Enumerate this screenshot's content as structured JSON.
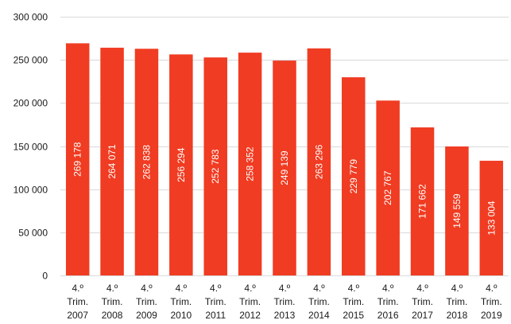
{
  "chart_data": {
    "type": "bar",
    "title": "",
    "xlabel": "",
    "ylabel": "",
    "categories": [
      [
        "4.º",
        "Trim.",
        "2007"
      ],
      [
        "4.º",
        "Trim.",
        "2008"
      ],
      [
        "4.º",
        "Trim.",
        "2009"
      ],
      [
        "4.º",
        "Trim.",
        "2010"
      ],
      [
        "4.º",
        "Trim.",
        "2011"
      ],
      [
        "4.º",
        "Trim.",
        "2012"
      ],
      [
        "4.º",
        "Trim.",
        "2013"
      ],
      [
        "4.º",
        "Trim.",
        "2014"
      ],
      [
        "4.º",
        "Trim.",
        "2015"
      ],
      [
        "4.º",
        "Trim.",
        "2016"
      ],
      [
        "4.º",
        "Trim.",
        "2017"
      ],
      [
        "4.º",
        "Trim.",
        "2018"
      ],
      [
        "4.º",
        "Trim.",
        "2019"
      ]
    ],
    "values": [
      269178,
      264071,
      262838,
      256294,
      252783,
      258352,
      249139,
      263296,
      229779,
      202767,
      171662,
      149559,
      133004
    ],
    "data_labels": [
      "269 178",
      "264 071",
      "262 838",
      "256 294",
      "252 783",
      "258 352",
      "249 139",
      "263 296",
      "229 779",
      "202 767",
      "171 662",
      "149 559",
      "133 004"
    ],
    "ylim": [
      0,
      300000
    ],
    "yticks": [
      0,
      50000,
      100000,
      150000,
      200000,
      250000,
      300000
    ],
    "ytick_labels": [
      "0",
      "50 000",
      "100 000",
      "150 000",
      "200 000",
      "250 000",
      "300 000"
    ],
    "grid": true,
    "legend": "none",
    "colors": {
      "bar": "#f03c22",
      "data_label": "#ffffff",
      "grid": "#d9d9d9",
      "axis_text": "#1a1a1a"
    }
  }
}
